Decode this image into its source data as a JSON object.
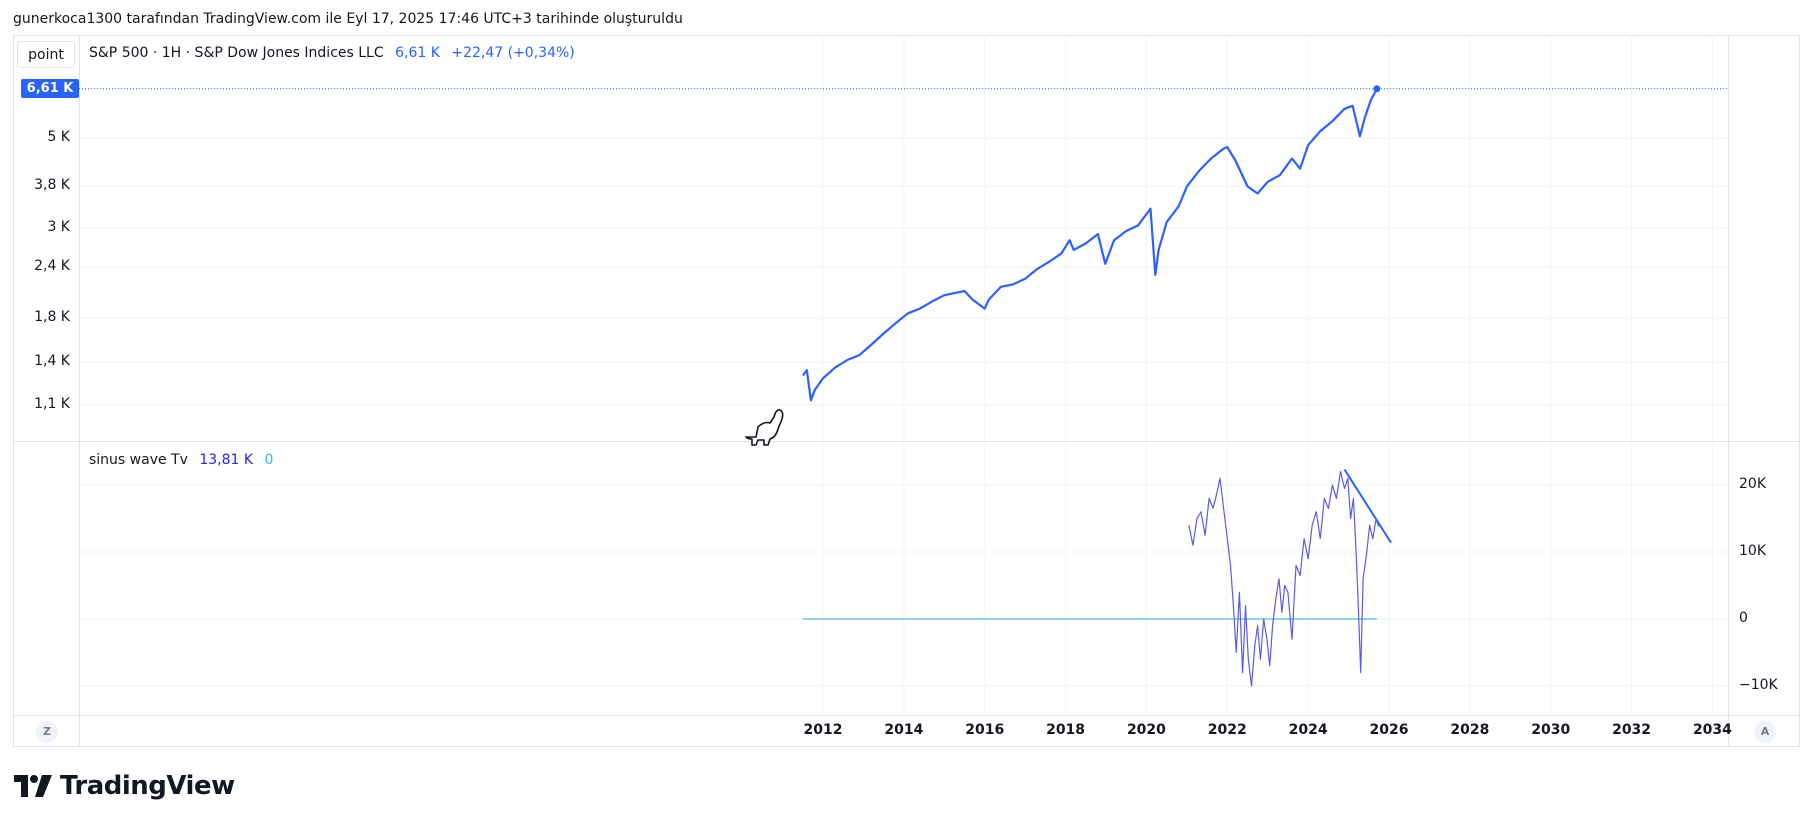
{
  "caption": "gunerkoca1300 tarafından TradingView.com ile Eyl 17, 2025 17:46 UTC+3 tarihinde oluşturuldu",
  "toolbar": {
    "scale_button": "point"
  },
  "main_pane": {
    "symbol": "S&P 500 · 1H · S&P Dow Jones Indices LLC",
    "last_value": "6,61 K",
    "change": "+22,47 (+0,34%)",
    "price_label": "6,61 K"
  },
  "indicator_pane": {
    "name": "sinus wave Tv",
    "value1": "13,81 K",
    "value2": "0"
  },
  "buttons": {
    "left_circle": "Z",
    "right_circle": "A"
  },
  "brand": {
    "name": "TradingView"
  },
  "icons": [
    "dinosaur-icon",
    "tradingview-logo-icon"
  ],
  "colors": {
    "price_line": "#2962ff",
    "indicator_line": "#5b5be6",
    "zero_line": "#4dbed6",
    "grid": "#f0f3fa"
  },
  "chart_data": [
    {
      "type": "line",
      "scale": "log",
      "yticks": [
        "6,61 K",
        "5 K",
        "3,8 K",
        "3 K",
        "2,4 K",
        "1,8 K",
        "1,4 K",
        "1,1 K"
      ],
      "ytick_values": [
        6610,
        5000,
        3800,
        3000,
        2400,
        1800,
        1400,
        1100
      ],
      "xticks": [
        "2012",
        "2014",
        "2016",
        "2018",
        "2020",
        "2022",
        "2024",
        "2026",
        "2028",
        "2030",
        "2032",
        "2034"
      ],
      "xlim": [
        2010.5,
        2034.5
      ],
      "ylim": [
        1000,
        7100
      ],
      "series": [
        {
          "x": [
            2011.5,
            2011.6,
            2011.7,
            2011.8,
            2012.0,
            2012.3,
            2012.6,
            2012.9,
            2013.2,
            2013.5,
            2013.8,
            2014.1,
            2014.4,
            2014.7,
            2015.0,
            2015.3,
            2015.5,
            2015.7,
            2016.0,
            2016.1,
            2016.4,
            2016.7,
            2017.0,
            2017.3,
            2017.6,
            2017.9,
            2018.1,
            2018.2,
            2018.5,
            2018.8,
            2018.98,
            2019.2,
            2019.5,
            2019.8,
            2020.1,
            2020.22,
            2020.3,
            2020.5,
            2020.8,
            2021.0,
            2021.3,
            2021.6,
            2021.9,
            2022.0,
            2022.2,
            2022.5,
            2022.75,
            2023.0,
            2023.3,
            2023.6,
            2023.8,
            2024.0,
            2024.3,
            2024.6,
            2024.9,
            2025.1,
            2025.28,
            2025.4,
            2025.55,
            2025.7
          ],
          "y": [
            1300,
            1340,
            1130,
            1200,
            1280,
            1360,
            1420,
            1460,
            1550,
            1650,
            1750,
            1850,
            1900,
            1980,
            2050,
            2080,
            2100,
            2000,
            1900,
            2000,
            2150,
            2180,
            2250,
            2380,
            2480,
            2600,
            2800,
            2650,
            2750,
            2900,
            2450,
            2800,
            2950,
            3050,
            3350,
            2300,
            2650,
            3100,
            3400,
            3800,
            4150,
            4450,
            4700,
            4750,
            4400,
            3800,
            3650,
            3900,
            4050,
            4450,
            4200,
            4800,
            5200,
            5500,
            5900,
            6000,
            5050,
            5600,
            6200,
            6610
          ]
        }
      ]
    },
    {
      "type": "line",
      "yticks": [
        "20K",
        "10K",
        "0",
        "−10K"
      ],
      "ytick_values": [
        20000,
        10000,
        0,
        -10000
      ],
      "ylim": [
        -11500,
        22500
      ],
      "series": [
        {
          "x": [
            2021.05,
            2021.15,
            2021.25,
            2021.35,
            2021.45,
            2021.55,
            2021.65,
            2021.75,
            2021.82,
            2021.9,
            2022.0,
            2022.08,
            2022.15,
            2022.22,
            2022.3,
            2022.38,
            2022.45,
            2022.52,
            2022.6,
            2022.68,
            2022.75,
            2022.82,
            2022.9,
            2022.98,
            2023.05,
            2023.12,
            2023.2,
            2023.28,
            2023.35,
            2023.42,
            2023.5,
            2023.6,
            2023.7,
            2023.8,
            2023.9,
            2024.0,
            2024.1,
            2024.2,
            2024.3,
            2024.4,
            2024.5,
            2024.6,
            2024.7,
            2024.8,
            2024.9,
            2024.98,
            2025.05,
            2025.12,
            2025.18,
            2025.24,
            2025.3,
            2025.36,
            2025.44,
            2025.52,
            2025.6,
            2025.68,
            2025.74
          ],
          "y": [
            14000,
            11000,
            15000,
            16000,
            12500,
            18000,
            16500,
            19000,
            21000,
            17000,
            12000,
            8000,
            2000,
            -5000,
            4000,
            -8000,
            2000,
            -6000,
            -10000,
            -4000,
            -1000,
            -6000,
            0,
            -3000,
            -7000,
            -1000,
            3000,
            6000,
            1000,
            5000,
            4000,
            -3000,
            8000,
            6500,
            12000,
            9000,
            14000,
            16000,
            12000,
            18000,
            16500,
            20000,
            18000,
            22000,
            19500,
            21000,
            15000,
            18000,
            11000,
            2000,
            -8000,
            6000,
            9500,
            14000,
            12000,
            15000,
            13810
          ]
        },
        {
          "name": "",
          "x": [
            2011.5,
            2025.7
          ],
          "y": [
            0,
            0
          ]
        }
      ],
      "trendline": {
        "x": [
          2024.9,
          2026.05
        ],
        "y": [
          22300,
          11400
        ]
      }
    }
  ]
}
